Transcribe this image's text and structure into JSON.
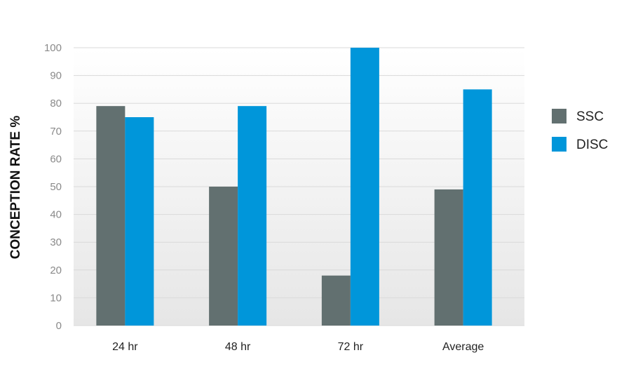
{
  "chart_data": {
    "type": "bar",
    "categories": [
      "24 hr",
      "48 hr",
      "72 hr",
      "Average"
    ],
    "series": [
      {
        "name": "SSC",
        "values": [
          79,
          50,
          18,
          49
        ]
      },
      {
        "name": "DISC",
        "values": [
          75,
          79,
          100,
          85
        ]
      }
    ],
    "title": "",
    "xlabel": "",
    "ylabel": "CONCEPTION RATE %",
    "ylim": [
      0,
      100
    ],
    "yticks": [
      0,
      10,
      20,
      30,
      40,
      50,
      60,
      70,
      80,
      90,
      100
    ],
    "grid": true,
    "legend": "right",
    "colors": {
      "SSC": "#627070",
      "DISC": "#0096da"
    }
  }
}
